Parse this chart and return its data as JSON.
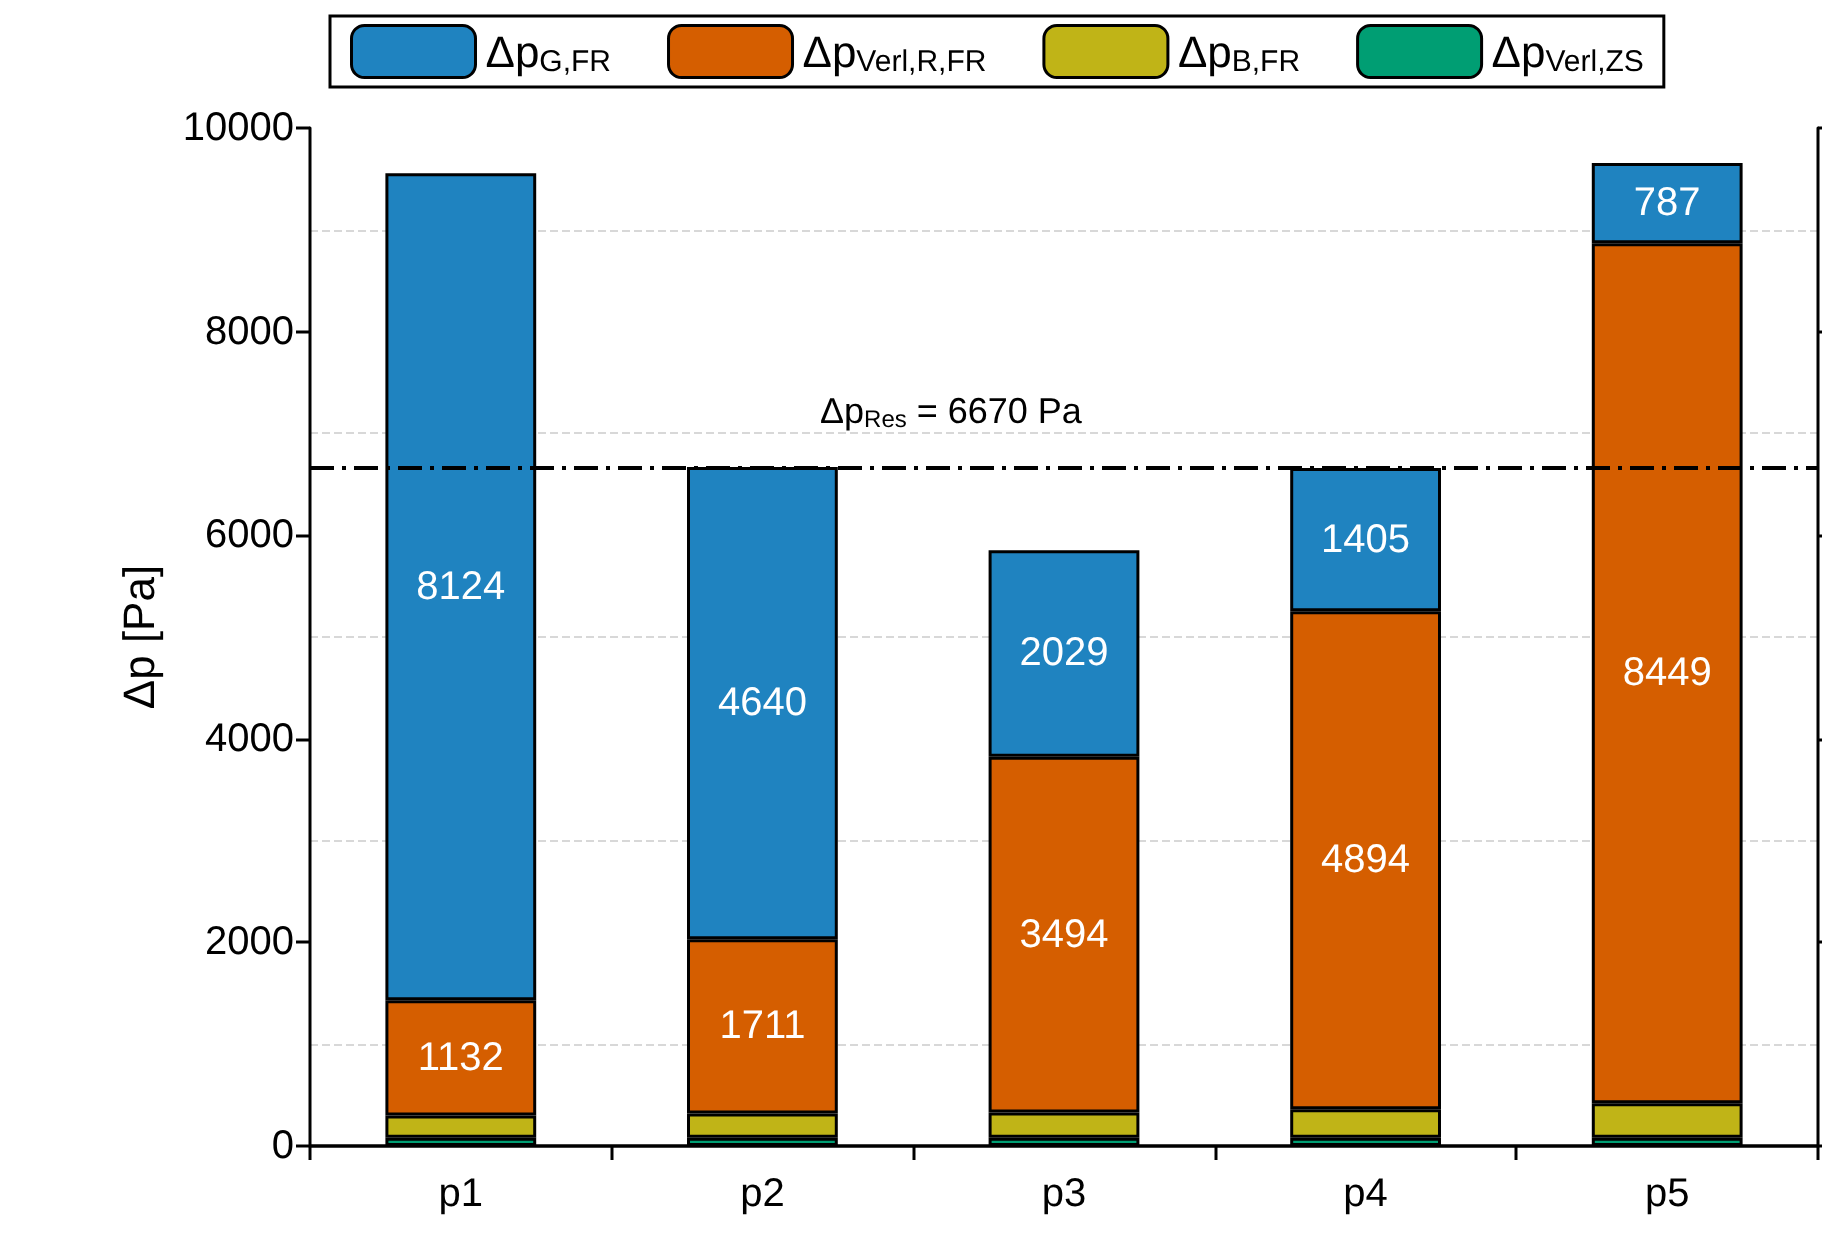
{
  "chart_data": {
    "type": "bar",
    "stacked": true,
    "ylabel": "Δp [Pa]",
    "categories": [
      "p1",
      "p2",
      "p3",
      "p4",
      "p5"
    ],
    "series": [
      {
        "name": "Δp$_{Verl,ZS}$",
        "color": "#009e73",
        "values": [
          80,
          80,
          80,
          80,
          80
        ]
      },
      {
        "name": "Δp$_{B,FR}$",
        "color": "#c0b417",
        "values": [
          220,
          240,
          250,
          280,
          340
        ]
      },
      {
        "name": "Δp$_{Verl,R,FR}$",
        "color": "#d55e00",
        "values": [
          1132,
          1711,
          3494,
          4894,
          8449
        ],
        "value_labels": [
          "1132",
          "1711",
          "3494",
          "4894",
          "8449"
        ]
      },
      {
        "name": "Δp$_{G,FR}$",
        "color": "#1f83c0",
        "values": [
          8124,
          4640,
          2029,
          1405,
          787
        ],
        "value_labels": [
          "8124",
          "4640",
          "2029",
          "1405",
          "787"
        ]
      }
    ],
    "ylim": [
      0,
      10000
    ],
    "yticks": [
      0,
      2000,
      4000,
      6000,
      8000,
      10000
    ],
    "grid": "y",
    "legend": "top",
    "ref_lines": [
      {
        "axis": "y",
        "value": 6670,
        "label": "Δp$_{Res}$ = 6670 Pa",
        "color": "#000000",
        "line_style": "dashdot"
      }
    ]
  }
}
